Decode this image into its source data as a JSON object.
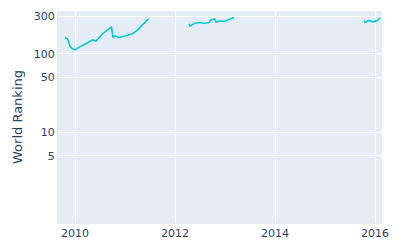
{
  "chart_data": {
    "type": "line",
    "y_label": "World Ranking",
    "x": [
      2009.8,
      2009.85,
      2009.9,
      2009.95,
      2010.0,
      2010.05,
      2010.12,
      2010.2,
      2010.28,
      2010.35,
      2010.42,
      2010.5,
      2010.57,
      2010.63,
      2010.7,
      2010.73,
      2010.76,
      2010.8,
      2010.88,
      2010.95,
      2011.05,
      2011.15,
      2011.25,
      2011.35,
      2011.42,
      2011.47,
      2011.8,
      2012.28,
      2012.3,
      2012.4,
      2012.5,
      2012.58,
      2012.68,
      2012.72,
      2012.8,
      2012.82,
      2012.9,
      2013.0,
      2013.1,
      2013.18,
      2014.5,
      2015.78,
      2015.8,
      2015.88,
      2015.95,
      2016.05,
      2016.1
    ],
    "values": [
      160,
      155,
      125,
      115,
      112,
      118,
      125,
      132,
      140,
      150,
      145,
      165,
      185,
      195,
      215,
      220,
      160,
      170,
      160,
      165,
      170,
      180,
      200,
      230,
      260,
      280,
      null,
      240,
      225,
      245,
      250,
      245,
      250,
      270,
      275,
      255,
      260,
      260,
      275,
      290,
      null,
      265,
      250,
      265,
      255,
      265,
      290
    ],
    "color": "#00ced1",
    "xlim": [
      2009.66,
      2016.14
    ],
    "xticks": [
      2010,
      2012,
      2014,
      2016
    ],
    "ylim": [
      0.7,
      350
    ],
    "yticks": [
      5,
      10,
      50,
      100,
      300
    ],
    "log": "y",
    "grid": true
  }
}
